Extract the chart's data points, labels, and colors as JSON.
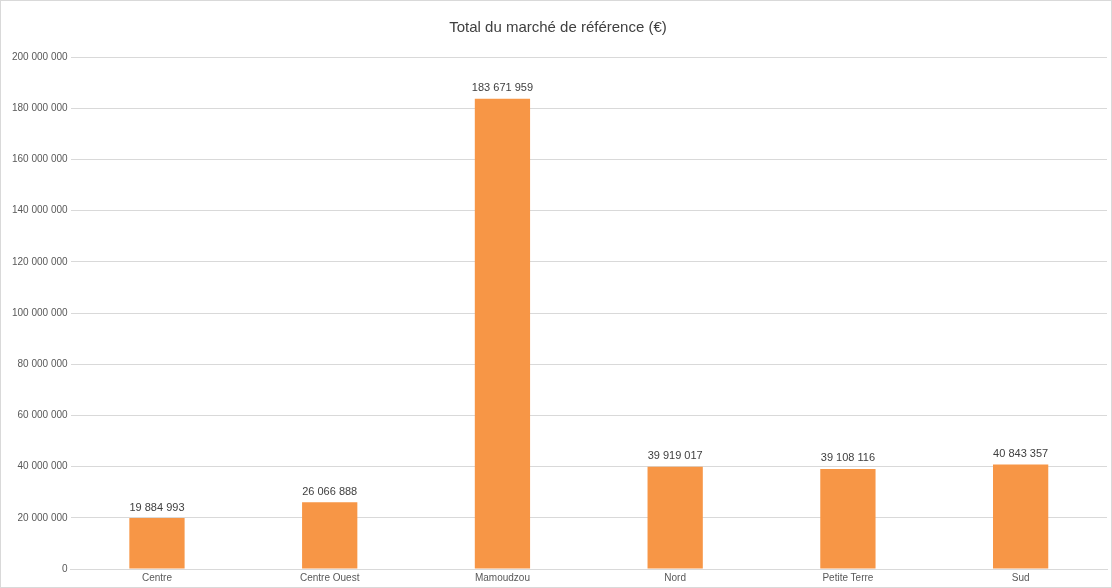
{
  "chart_data": {
    "type": "bar",
    "title": "Total du marché de référence (€)",
    "categories": [
      "Centre",
      "Centre Ouest",
      "Mamoudzou",
      "Nord",
      "Petite Terre",
      "Sud"
    ],
    "values": [
      19884993,
      26066888,
      183671959,
      39919017,
      39108116,
      40843357
    ],
    "value_labels": [
      "19 884 993",
      "26 066 888",
      "183 671 959",
      "39 919 017",
      "39 108 116",
      "40 843 357"
    ],
    "color": "#f79646",
    "ylim": [
      0,
      200000000
    ],
    "yticks": [
      0,
      {
        "value": 20000000,
        "label": "20 000 000"
      },
      {
        "value": 40000000,
        "label": "40 000 000"
      },
      {
        "value": 60000000,
        "label": "60 000 000"
      },
      {
        "value": 80000000,
        "label": "80 000 000"
      },
      {
        "value": 100000000,
        "label": "100 000 000"
      },
      {
        "value": 120000000,
        "label": "120 000 000"
      },
      {
        "value": 140000000,
        "label": "140 000 000"
      },
      {
        "value": 160000000,
        "label": "160 000 000"
      },
      {
        "value": 180000000,
        "label": "180 000 000"
      },
      {
        "value": 200000000,
        "label": "200 000 000"
      }
    ],
    "grid": "y",
    "legend": false
  }
}
